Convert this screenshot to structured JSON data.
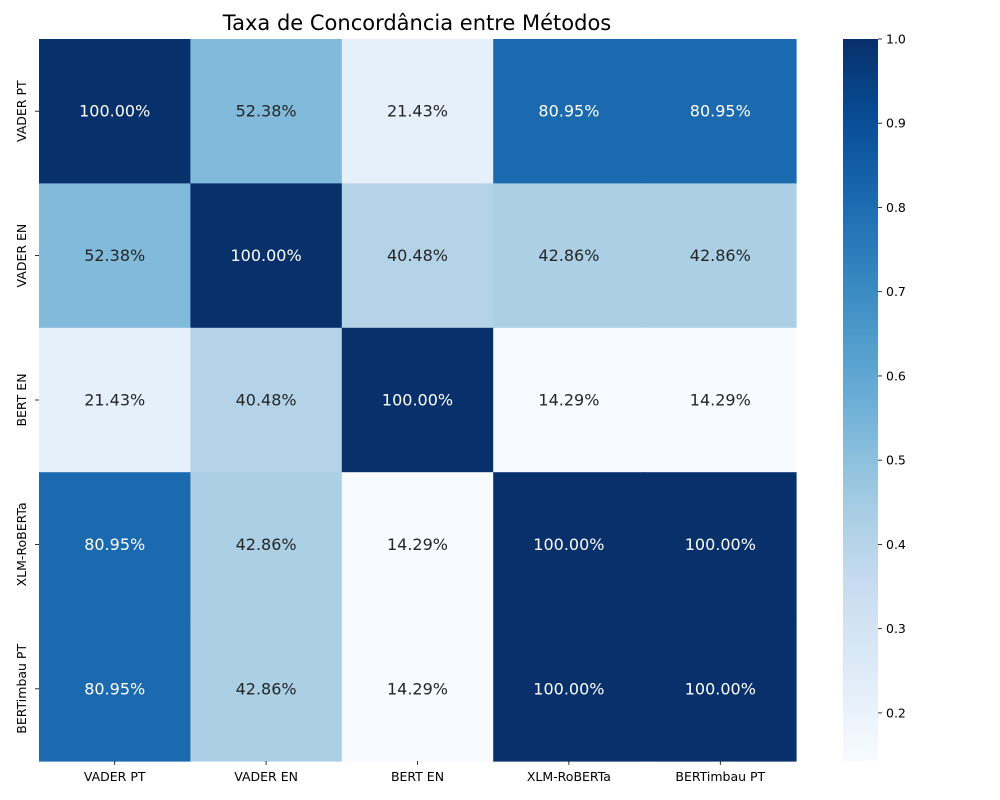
{
  "chart_data": {
    "type": "heatmap",
    "title": "Taxa de Concordância entre Métodos",
    "row_labels": [
      "VADER PT",
      "VADER EN",
      "BERT EN",
      "XLM-RoBERTa",
      "BERTimbau PT"
    ],
    "col_labels": [
      "VADER PT",
      "VADER EN",
      "BERT EN",
      "XLM-RoBERTa",
      "BERTimbau PT"
    ],
    "values": [
      [
        1.0,
        0.5238,
        0.2143,
        0.8095,
        0.8095
      ],
      [
        0.5238,
        1.0,
        0.4048,
        0.4286,
        0.4286
      ],
      [
        0.2143,
        0.4048,
        1.0,
        0.1429,
        0.1429
      ],
      [
        0.8095,
        0.4286,
        0.1429,
        1.0,
        1.0
      ],
      [
        0.8095,
        0.4286,
        0.1429,
        1.0,
        1.0
      ]
    ],
    "annotations": [
      [
        "100.00%",
        "52.38%",
        "21.43%",
        "80.95%",
        "80.95%"
      ],
      [
        "52.38%",
        "100.00%",
        "40.48%",
        "42.86%",
        "42.86%"
      ],
      [
        "21.43%",
        "40.48%",
        "100.00%",
        "14.29%",
        "14.29%"
      ],
      [
        "80.95%",
        "42.86%",
        "14.29%",
        "100.00%",
        "100.00%"
      ],
      [
        "80.95%",
        "42.86%",
        "14.29%",
        "100.00%",
        "100.00%"
      ]
    ],
    "colormap": "Blues",
    "colorbar": {
      "range": [
        0.1429,
        1.0
      ],
      "ticks": [
        0.2,
        0.3,
        0.4,
        0.5,
        0.6,
        0.7,
        0.8,
        0.9,
        1.0
      ],
      "tick_labels": [
        "0.2",
        "0.3",
        "0.4",
        "0.5",
        "0.6",
        "0.7",
        "0.8",
        "0.9",
        "1.0"
      ]
    },
    "xlabel": "",
    "ylabel": ""
  }
}
